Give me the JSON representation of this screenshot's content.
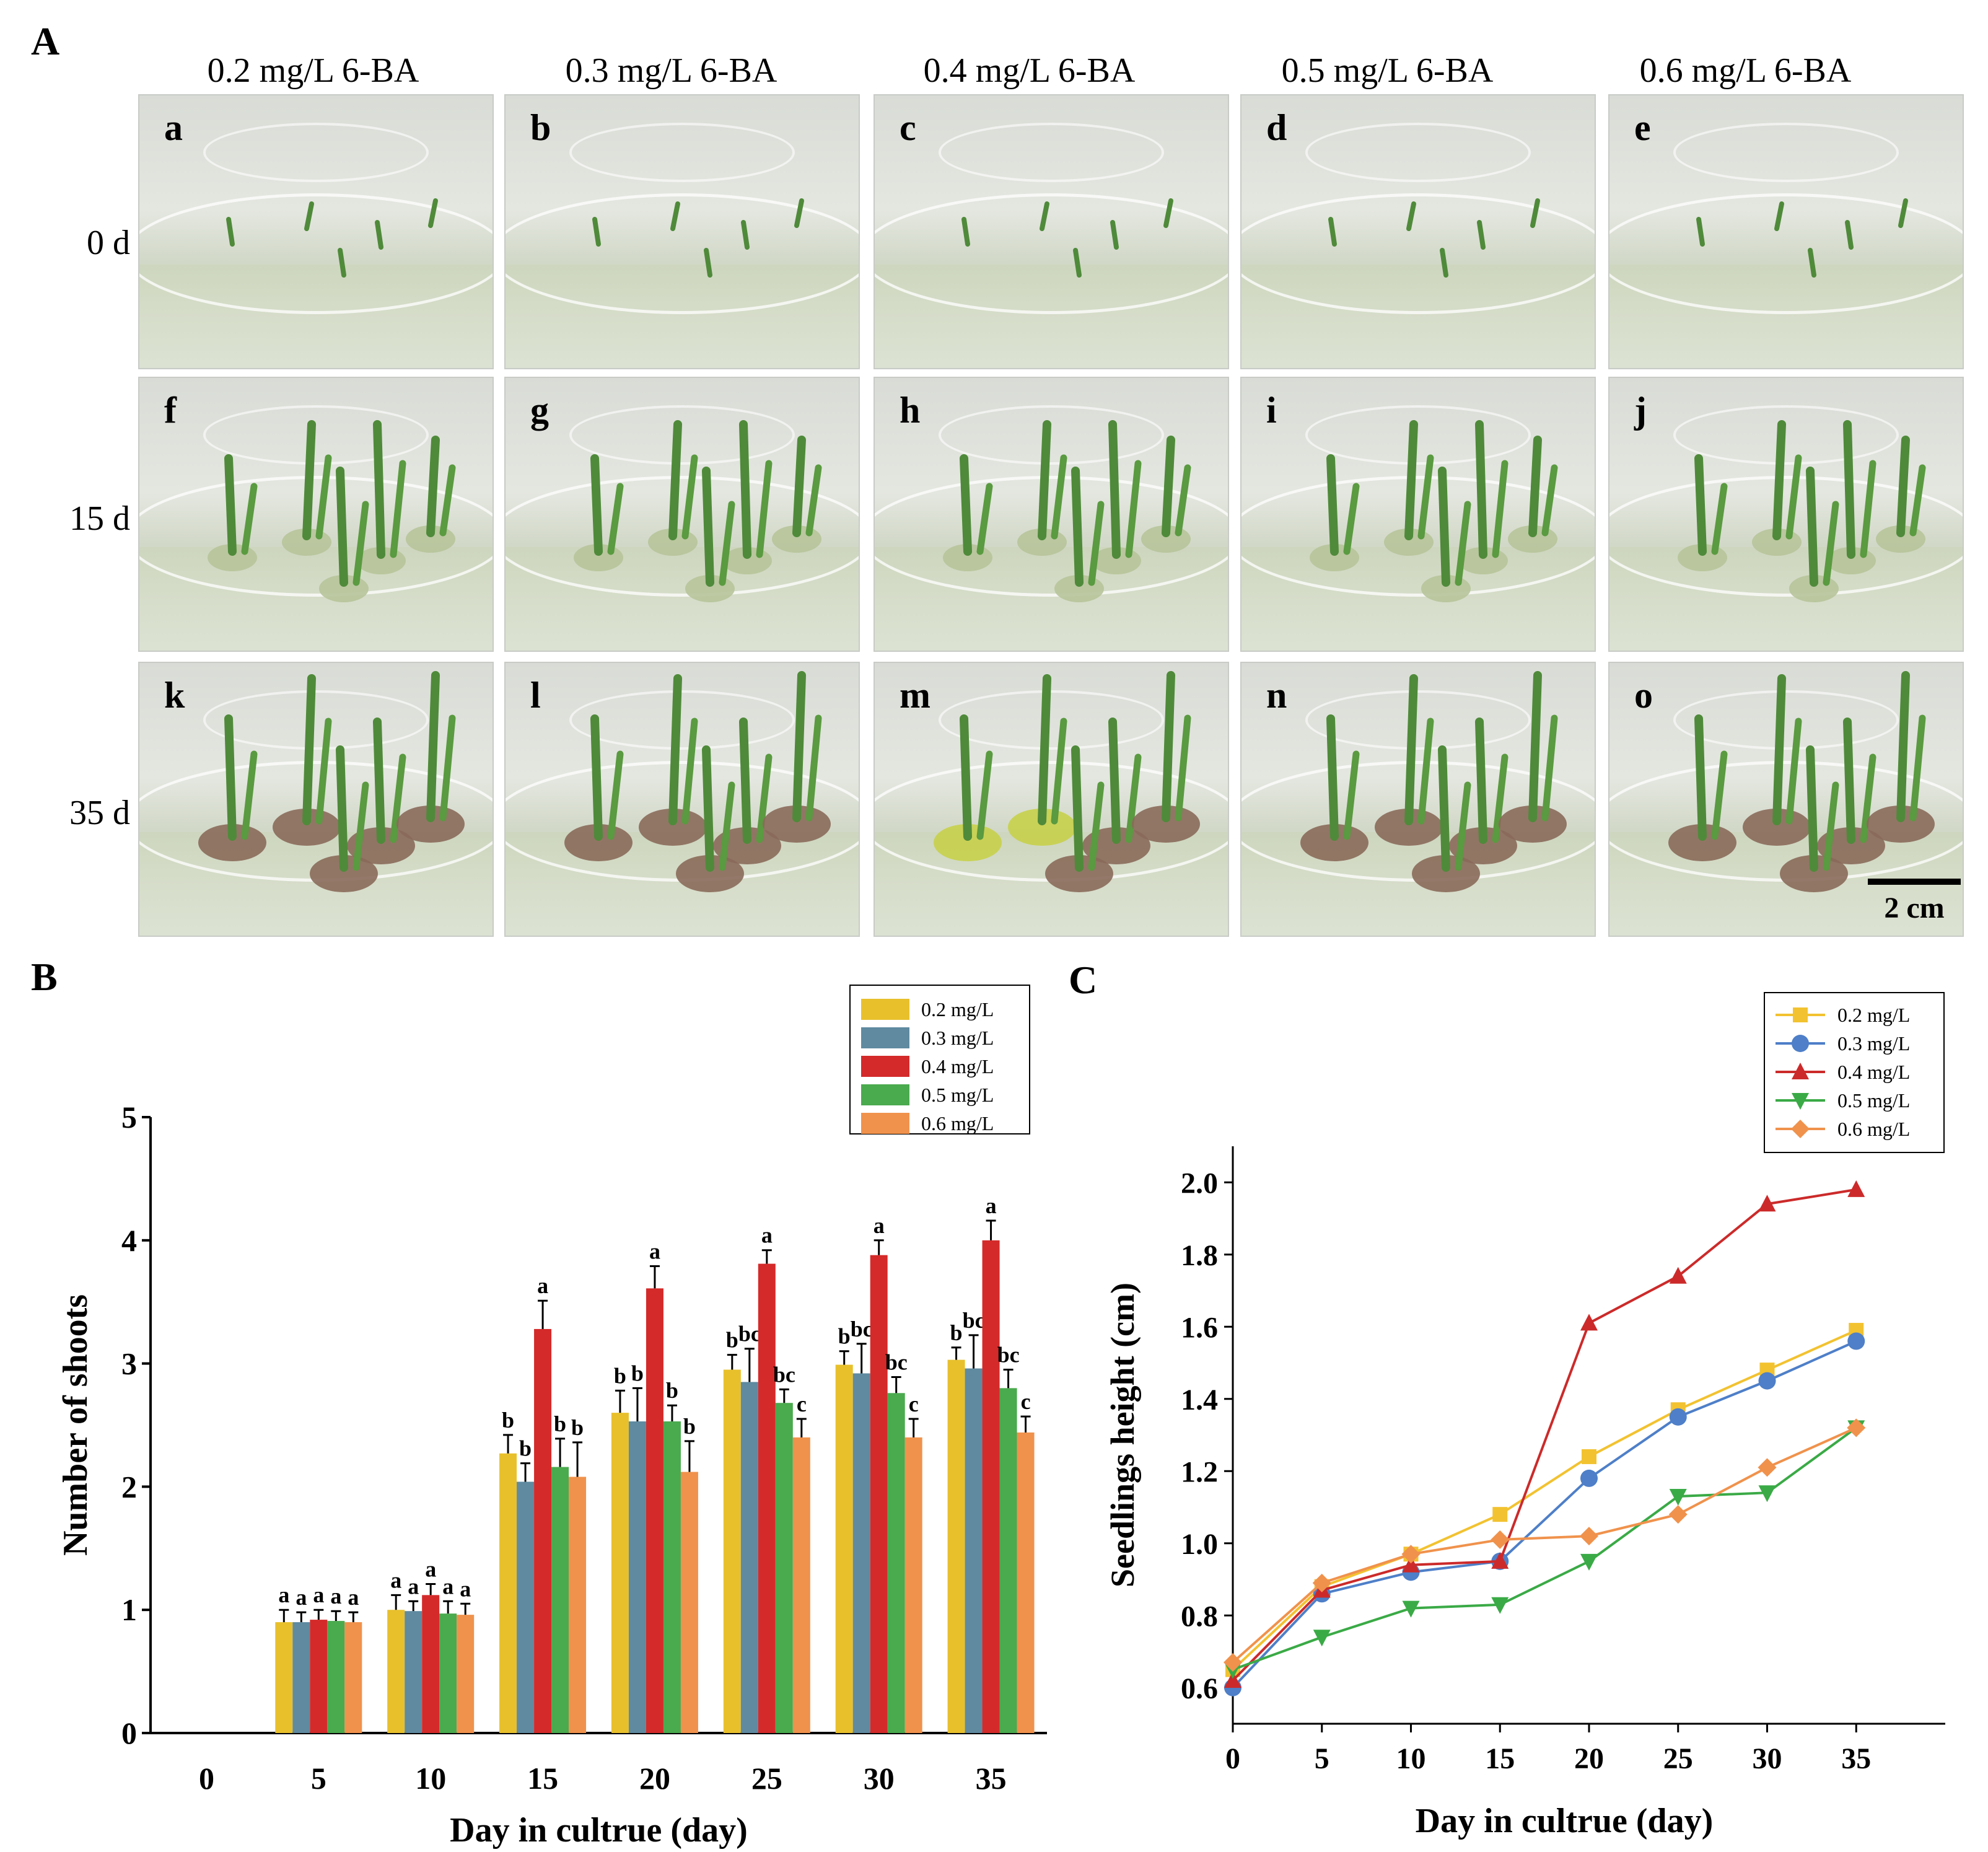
{
  "panel_a": {
    "label": "A",
    "columns": [
      "0.2 mg/L 6-BA",
      "0.3 mg/L 6-BA",
      "0.4 mg/L 6-BA",
      "0.5 mg/L 6-BA",
      "0.6 mg/L 6-BA"
    ],
    "rows": [
      "0 d",
      "15 d",
      "35 d"
    ],
    "photo_letters": [
      "a",
      "b",
      "c",
      "d",
      "e",
      "f",
      "g",
      "h",
      "i",
      "j",
      "k",
      "l",
      "m",
      "n",
      "o"
    ],
    "scale_bar": "2 cm"
  },
  "colors": {
    "0.2": "#e8c02c",
    "0.3": "#5f8aa0",
    "0.4": "#d42a2a",
    "0.5": "#4aaa4e",
    "0.6": "#f0924c",
    "line_0.2": "#f2c230",
    "line_0.3": "#4e7fc8",
    "line_0.4": "#cc2a2a",
    "line_0.5": "#3aaa46",
    "line_0.6": "#f0924c"
  },
  "chart_data": [
    {
      "panel": "B",
      "type": "bar",
      "title": "",
      "xlabel": "Day in cultrue (day)",
      "ylabel": "Number of shoots",
      "ylim": [
        0,
        5
      ],
      "yticks": [
        "0",
        "1",
        "2",
        "3",
        "4",
        "5"
      ],
      "categories": [
        "0",
        "5",
        "10",
        "15",
        "20",
        "25",
        "30",
        "35"
      ],
      "series": [
        {
          "name": "0.2 mg/L",
          "color_key": "0.2",
          "values": [
            0,
            0.9,
            1.0,
            2.27,
            2.6,
            2.95,
            2.99,
            3.03
          ],
          "errors": [
            0,
            0.1,
            0.12,
            0.15,
            0.18,
            0.12,
            0.11,
            0.1
          ],
          "letters": [
            "",
            "a",
            "a",
            "b",
            "b",
            "b",
            "b",
            "b"
          ]
        },
        {
          "name": "0.3 mg/L",
          "color_key": "0.3",
          "values": [
            0,
            0.9,
            0.99,
            2.04,
            2.53,
            2.85,
            2.92,
            2.96
          ],
          "errors": [
            0,
            0.08,
            0.08,
            0.15,
            0.27,
            0.27,
            0.24,
            0.27
          ],
          "letters": [
            "",
            "a",
            "a",
            "b",
            "b",
            "bc",
            "bc",
            "bc"
          ]
        },
        {
          "name": "0.4 mg/L",
          "color_key": "0.4",
          "values": [
            0,
            0.92,
            1.12,
            3.28,
            3.61,
            3.81,
            3.88,
            4.0
          ],
          "errors": [
            0,
            0.08,
            0.09,
            0.23,
            0.18,
            0.11,
            0.12,
            0.16
          ],
          "letters": [
            "",
            "a",
            "a",
            "a",
            "a",
            "a",
            "a",
            "a"
          ]
        },
        {
          "name": "0.5 mg/L",
          "color_key": "0.5",
          "values": [
            0,
            0.91,
            0.97,
            2.16,
            2.53,
            2.68,
            2.76,
            2.8
          ],
          "errors": [
            0,
            0.08,
            0.1,
            0.23,
            0.13,
            0.11,
            0.13,
            0.15
          ],
          "letters": [
            "",
            "a",
            "a",
            "b",
            "b",
            "bc",
            "bc",
            "bc"
          ]
        },
        {
          "name": "0.6 mg/L",
          "color_key": "0.6",
          "values": [
            0,
            0.9,
            0.96,
            2.08,
            2.12,
            2.4,
            2.4,
            2.44
          ],
          "errors": [
            0,
            0.08,
            0.09,
            0.28,
            0.25,
            0.15,
            0.15,
            0.13
          ],
          "letters": [
            "",
            "a",
            "a",
            "b",
            "b",
            "c",
            "c",
            "c"
          ]
        }
      ],
      "legend": "top-right"
    },
    {
      "panel": "C",
      "type": "line",
      "title": "",
      "xlabel": "Day in cultrue (day)",
      "ylabel": "Seedlings height (cm)",
      "xlim": [
        0,
        40
      ],
      "ylim": [
        0.5,
        2.1
      ],
      "xticks": [
        "0",
        "5",
        "10",
        "15",
        "20",
        "25",
        "30",
        "35"
      ],
      "yticks": [
        "0.6",
        "0.8",
        "1.0",
        "1.2",
        "1.4",
        "1.6",
        "1.8",
        "2.0"
      ],
      "x": [
        0,
        5,
        10,
        15,
        20,
        25,
        30,
        35
      ],
      "series": [
        {
          "name": "0.2 mg/L",
          "color_key": "line_0.2",
          "marker": "square",
          "values": [
            0.65,
            0.88,
            0.97,
            1.08,
            1.24,
            1.37,
            1.48,
            1.59
          ]
        },
        {
          "name": "0.3 mg/L",
          "color_key": "line_0.3",
          "marker": "circle",
          "values": [
            0.6,
            0.86,
            0.92,
            0.95,
            1.18,
            1.35,
            1.45,
            1.56
          ]
        },
        {
          "name": "0.4 mg/L",
          "color_key": "line_0.4",
          "marker": "triangle-up",
          "values": [
            0.62,
            0.87,
            0.94,
            0.95,
            1.61,
            1.74,
            1.94,
            1.98
          ]
        },
        {
          "name": "0.5 mg/L",
          "color_key": "line_0.5",
          "marker": "triangle-down",
          "values": [
            0.65,
            0.74,
            0.82,
            0.83,
            0.95,
            1.13,
            1.14,
            1.32
          ]
        },
        {
          "name": "0.6 mg/L",
          "color_key": "line_0.6",
          "marker": "diamond",
          "values": [
            0.67,
            0.89,
            0.97,
            1.01,
            1.02,
            1.08,
            1.21,
            1.32
          ]
        }
      ],
      "legend": "top-right"
    }
  ],
  "panel_b_label": "B",
  "panel_c_label": "C"
}
